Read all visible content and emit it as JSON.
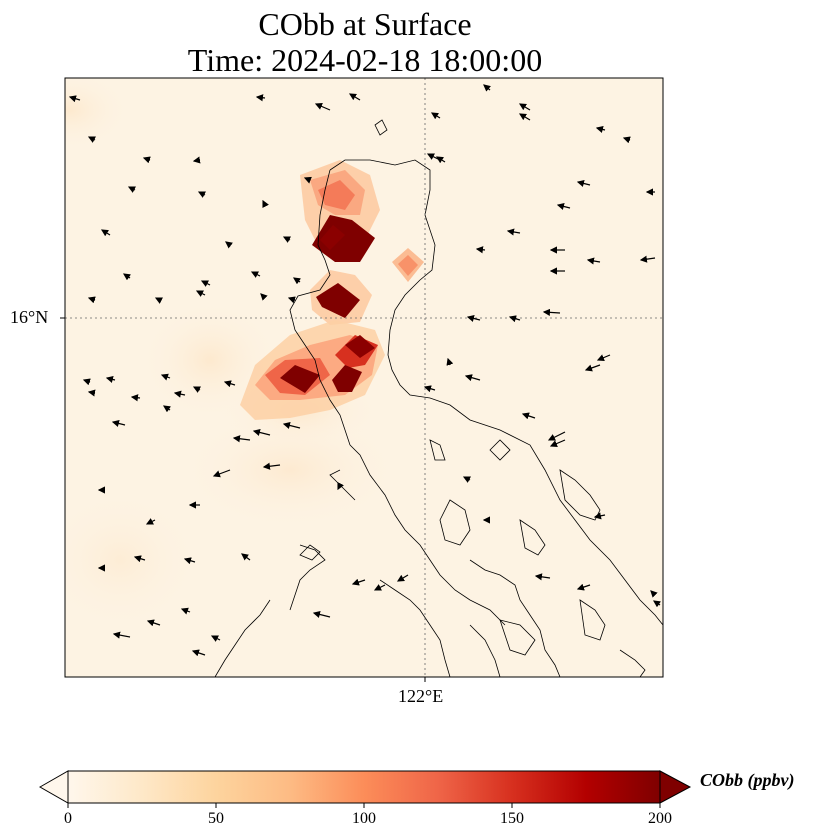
{
  "title": {
    "line1": "CObb at Surface",
    "line2": "Time: 2024-02-18 18:00:00"
  },
  "map": {
    "lat_label": "16°N",
    "lon_label": "122°E",
    "gridlines": "dotted",
    "coastline_color": "#000000",
    "background_color": "#fdf3e3"
  },
  "colorbar": {
    "label": "CObb (ppbv)",
    "ticks": [
      "0",
      "50",
      "100",
      "150",
      "200"
    ],
    "colormap": "OrRd",
    "extend": "both",
    "stops": [
      "#fff7ec",
      "#fee8c8",
      "#fdd49e",
      "#fdbb84",
      "#fc8d59",
      "#ef6548",
      "#d7301f",
      "#b30000",
      "#7f0000"
    ]
  },
  "plumes": [
    {
      "name": "north-plume",
      "intensity": "high"
    },
    {
      "name": "central-plume",
      "intensity": "high"
    },
    {
      "name": "south-plume",
      "intensity": "high"
    },
    {
      "name": "east-small-plume",
      "intensity": "moderate"
    }
  ]
}
